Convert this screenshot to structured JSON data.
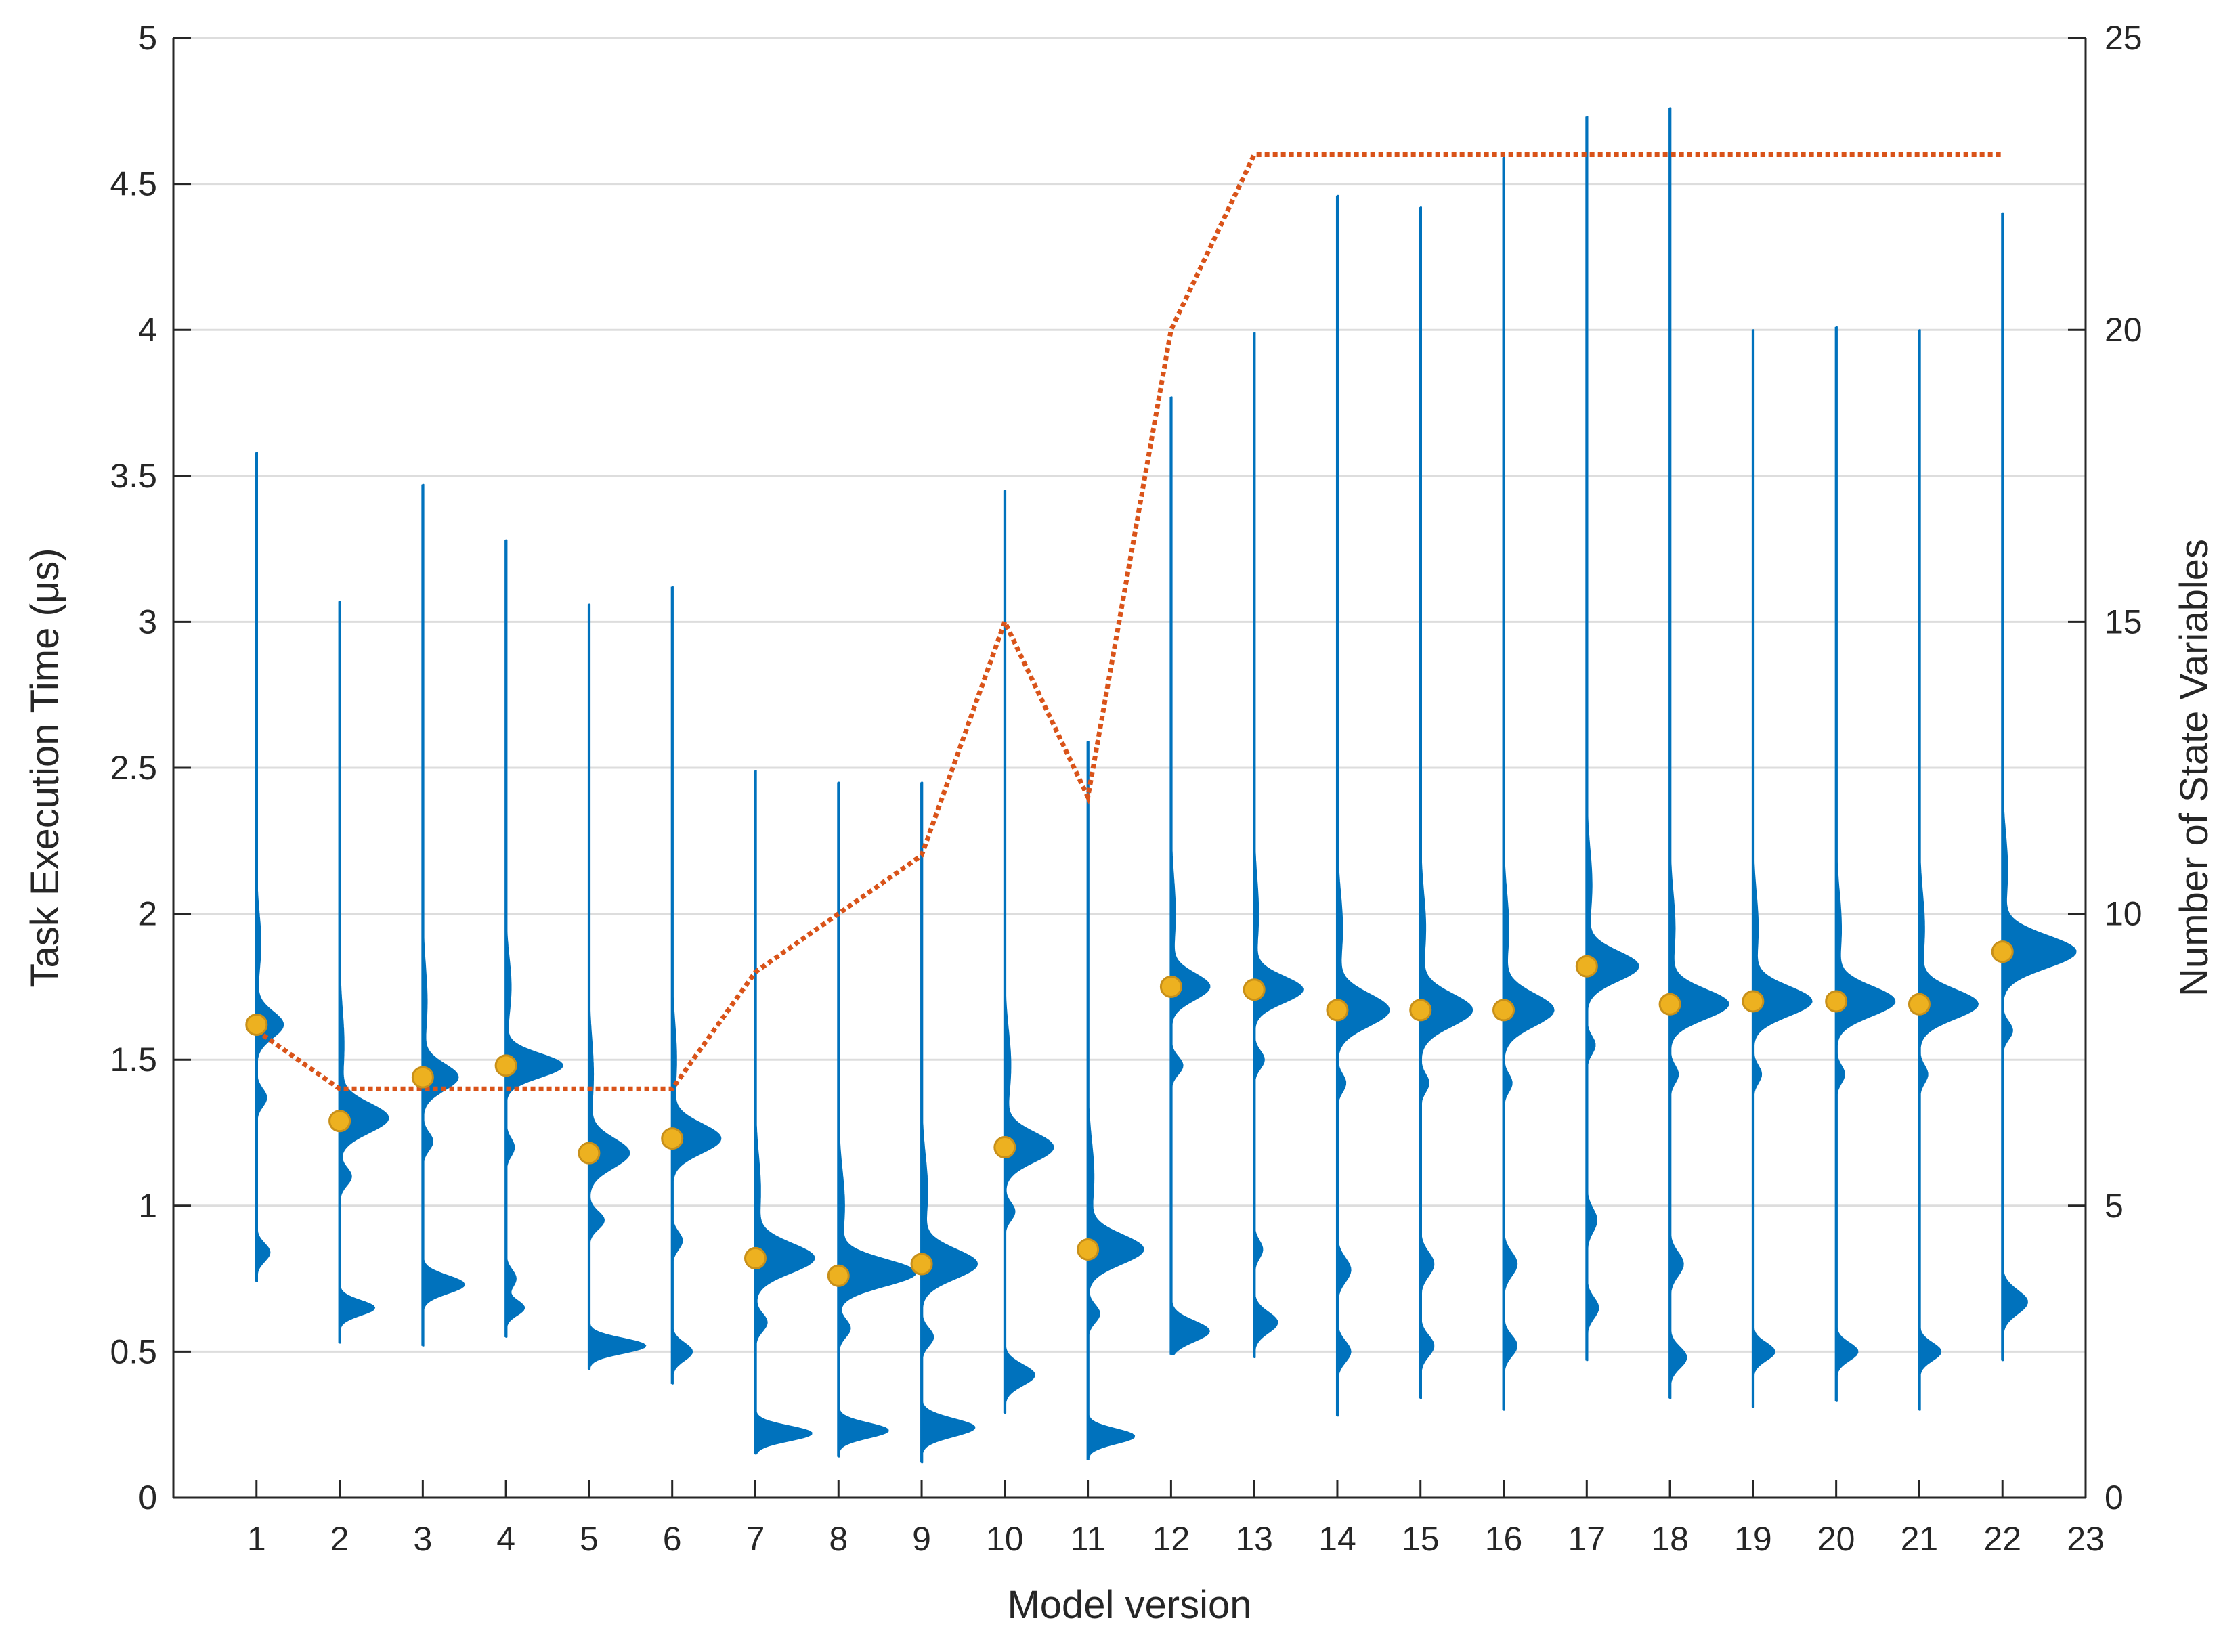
{
  "chart_data": {
    "type": "violin",
    "xlabel": "Model version",
    "ylabel_left": "Task Execution Time (μs)",
    "ylabel_right": "Number of State Variables",
    "xlim": [
      0,
      23
    ],
    "ylim_left": [
      0,
      5
    ],
    "ylim_right": [
      0,
      25
    ],
    "xticks": [
      1,
      2,
      3,
      4,
      5,
      6,
      7,
      8,
      9,
      10,
      11,
      12,
      13,
      14,
      15,
      16,
      17,
      18,
      19,
      20,
      21,
      22,
      23
    ],
    "yticks_left": [
      0,
      0.5,
      1,
      1.5,
      2,
      2.5,
      3,
      3.5,
      4,
      4.5,
      5
    ],
    "yticks_right": [
      0,
      5,
      10,
      15,
      20,
      25
    ],
    "grid": "horizontal",
    "colors": {
      "violin": "#0072BD",
      "median": "#EDB120",
      "median_edge": "#C8901A",
      "state_line": "#D95319",
      "grid": "#DDDDDD",
      "axis": "#262626"
    },
    "violins": [
      {
        "x": 1,
        "min": 0.74,
        "max": 3.58,
        "median": 1.62,
        "modes": [
          {
            "y": 1.62,
            "w": 0.32,
            "s": 0.045
          },
          {
            "y": 1.37,
            "w": 0.12,
            "s": 0.03
          },
          {
            "y": 0.84,
            "w": 0.16,
            "s": 0.03
          },
          {
            "y": 1.9,
            "w": 0.05,
            "s": 0.1
          }
        ]
      },
      {
        "x": 2,
        "min": 0.53,
        "max": 3.07,
        "median": 1.29,
        "modes": [
          {
            "y": 1.3,
            "w": 0.58,
            "s": 0.05
          },
          {
            "y": 1.1,
            "w": 0.14,
            "s": 0.03
          },
          {
            "y": 0.65,
            "w": 0.42,
            "s": 0.025
          },
          {
            "y": 1.55,
            "w": 0.05,
            "s": 0.12
          }
        ]
      },
      {
        "x": 3,
        "min": 0.52,
        "max": 3.47,
        "median": 1.44,
        "modes": [
          {
            "y": 1.44,
            "w": 0.42,
            "s": 0.045
          },
          {
            "y": 1.22,
            "w": 0.12,
            "s": 0.03
          },
          {
            "y": 0.73,
            "w": 0.5,
            "s": 0.03
          },
          {
            "y": 1.7,
            "w": 0.05,
            "s": 0.12
          }
        ]
      },
      {
        "x": 4,
        "min": 0.55,
        "max": 3.28,
        "median": 1.48,
        "modes": [
          {
            "y": 1.48,
            "w": 0.68,
            "s": 0.04
          },
          {
            "y": 1.2,
            "w": 0.1,
            "s": 0.03
          },
          {
            "y": 0.75,
            "w": 0.12,
            "s": 0.03
          },
          {
            "y": 0.65,
            "w": 0.22,
            "s": 0.025
          },
          {
            "y": 1.75,
            "w": 0.06,
            "s": 0.1
          }
        ]
      },
      {
        "x": 5,
        "min": 0.44,
        "max": 3.06,
        "median": 1.18,
        "modes": [
          {
            "y": 1.18,
            "w": 0.48,
            "s": 0.05
          },
          {
            "y": 0.95,
            "w": 0.18,
            "s": 0.03
          },
          {
            "y": 0.52,
            "w": 0.68,
            "s": 0.025
          },
          {
            "y": 1.45,
            "w": 0.05,
            "s": 0.12
          }
        ]
      },
      {
        "x": 6,
        "min": 0.39,
        "max": 3.12,
        "median": 1.23,
        "modes": [
          {
            "y": 1.23,
            "w": 0.58,
            "s": 0.05
          },
          {
            "y": 0.88,
            "w": 0.12,
            "s": 0.03
          },
          {
            "y": 0.5,
            "w": 0.24,
            "s": 0.03
          },
          {
            "y": 1.5,
            "w": 0.05,
            "s": 0.12
          }
        ]
      },
      {
        "x": 7,
        "min": 0.15,
        "max": 2.49,
        "median": 0.82,
        "modes": [
          {
            "y": 0.82,
            "w": 0.7,
            "s": 0.05
          },
          {
            "y": 0.6,
            "w": 0.14,
            "s": 0.03
          },
          {
            "y": 0.22,
            "w": 0.68,
            "s": 0.025
          },
          {
            "y": 1.05,
            "w": 0.06,
            "s": 0.12
          }
        ]
      },
      {
        "x": 8,
        "min": 0.14,
        "max": 2.45,
        "median": 0.76,
        "modes": [
          {
            "y": 0.77,
            "w": 0.92,
            "s": 0.045
          },
          {
            "y": 0.58,
            "w": 0.14,
            "s": 0.03
          },
          {
            "y": 0.23,
            "w": 0.6,
            "s": 0.025
          },
          {
            "y": 1.0,
            "w": 0.07,
            "s": 0.12
          }
        ]
      },
      {
        "x": 9,
        "min": 0.12,
        "max": 2.45,
        "median": 0.8,
        "modes": [
          {
            "y": 0.8,
            "w": 0.66,
            "s": 0.05
          },
          {
            "y": 0.55,
            "w": 0.14,
            "s": 0.03
          },
          {
            "y": 0.24,
            "w": 0.64,
            "s": 0.03
          },
          {
            "y": 1.05,
            "w": 0.07,
            "s": 0.12
          }
        ]
      },
      {
        "x": 10,
        "min": 0.29,
        "max": 3.45,
        "median": 1.2,
        "modes": [
          {
            "y": 1.2,
            "w": 0.58,
            "s": 0.05
          },
          {
            "y": 0.98,
            "w": 0.12,
            "s": 0.03
          },
          {
            "y": 0.42,
            "w": 0.36,
            "s": 0.035
          },
          {
            "y": 1.48,
            "w": 0.07,
            "s": 0.12
          }
        ]
      },
      {
        "x": 11,
        "min": 0.13,
        "max": 2.59,
        "median": 0.85,
        "modes": [
          {
            "y": 0.85,
            "w": 0.66,
            "s": 0.05
          },
          {
            "y": 0.63,
            "w": 0.14,
            "s": 0.03
          },
          {
            "y": 0.21,
            "w": 0.56,
            "s": 0.025
          },
          {
            "y": 1.1,
            "w": 0.07,
            "s": 0.12
          }
        ]
      },
      {
        "x": 12,
        "min": 0.49,
        "max": 3.77,
        "median": 1.75,
        "modes": [
          {
            "y": 1.75,
            "w": 0.46,
            "s": 0.045
          },
          {
            "y": 1.48,
            "w": 0.14,
            "s": 0.03
          },
          {
            "y": 0.57,
            "w": 0.46,
            "s": 0.035
          },
          {
            "y": 2.0,
            "w": 0.05,
            "s": 0.12
          }
        ]
      },
      {
        "x": 13,
        "min": 0.48,
        "max": 3.99,
        "median": 1.74,
        "modes": [
          {
            "y": 1.74,
            "w": 0.58,
            "s": 0.045
          },
          {
            "y": 1.5,
            "w": 0.12,
            "s": 0.03
          },
          {
            "y": 0.85,
            "w": 0.1,
            "s": 0.03
          },
          {
            "y": 0.6,
            "w": 0.28,
            "s": 0.035
          },
          {
            "y": 2.0,
            "w": 0.05,
            "s": 0.12
          }
        ]
      },
      {
        "x": 14,
        "min": 0.28,
        "max": 4.46,
        "median": 1.67,
        "modes": [
          {
            "y": 1.67,
            "w": 0.62,
            "s": 0.055
          },
          {
            "y": 1.42,
            "w": 0.1,
            "s": 0.03
          },
          {
            "y": 0.78,
            "w": 0.16,
            "s": 0.04
          },
          {
            "y": 0.5,
            "w": 0.16,
            "s": 0.035
          },
          {
            "y": 1.95,
            "w": 0.06,
            "s": 0.12
          }
        ]
      },
      {
        "x": 15,
        "min": 0.34,
        "max": 4.42,
        "median": 1.67,
        "modes": [
          {
            "y": 1.67,
            "w": 0.62,
            "s": 0.055
          },
          {
            "y": 1.42,
            "w": 0.1,
            "s": 0.03
          },
          {
            "y": 0.8,
            "w": 0.16,
            "s": 0.04
          },
          {
            "y": 0.52,
            "w": 0.16,
            "s": 0.035
          },
          {
            "y": 1.95,
            "w": 0.06,
            "s": 0.12
          }
        ]
      },
      {
        "x": 16,
        "min": 0.3,
        "max": 4.59,
        "median": 1.67,
        "modes": [
          {
            "y": 1.67,
            "w": 0.6,
            "s": 0.055
          },
          {
            "y": 1.42,
            "w": 0.1,
            "s": 0.03
          },
          {
            "y": 0.8,
            "w": 0.16,
            "s": 0.04
          },
          {
            "y": 0.52,
            "w": 0.16,
            "s": 0.035
          },
          {
            "y": 1.95,
            "w": 0.06,
            "s": 0.12
          }
        ]
      },
      {
        "x": 17,
        "min": 0.47,
        "max": 4.73,
        "median": 1.82,
        "modes": [
          {
            "y": 1.82,
            "w": 0.62,
            "s": 0.05
          },
          {
            "y": 1.55,
            "w": 0.1,
            "s": 0.03
          },
          {
            "y": 0.95,
            "w": 0.12,
            "s": 0.04
          },
          {
            "y": 0.65,
            "w": 0.14,
            "s": 0.035
          },
          {
            "y": 2.1,
            "w": 0.06,
            "s": 0.12
          }
        ]
      },
      {
        "x": 18,
        "min": 0.34,
        "max": 4.76,
        "median": 1.69,
        "modes": [
          {
            "y": 1.69,
            "w": 0.7,
            "s": 0.05
          },
          {
            "y": 1.45,
            "w": 0.1,
            "s": 0.03
          },
          {
            "y": 0.8,
            "w": 0.16,
            "s": 0.04
          },
          {
            "y": 0.48,
            "w": 0.2,
            "s": 0.035
          },
          {
            "y": 1.95,
            "w": 0.06,
            "s": 0.12
          }
        ]
      },
      {
        "x": 19,
        "min": 0.31,
        "max": 4.0,
        "median": 1.7,
        "modes": [
          {
            "y": 1.7,
            "w": 0.7,
            "s": 0.05
          },
          {
            "y": 1.45,
            "w": 0.1,
            "s": 0.03
          },
          {
            "y": 0.5,
            "w": 0.26,
            "s": 0.03
          },
          {
            "y": 1.95,
            "w": 0.06,
            "s": 0.12
          }
        ]
      },
      {
        "x": 20,
        "min": 0.33,
        "max": 4.01,
        "median": 1.7,
        "modes": [
          {
            "y": 1.7,
            "w": 0.7,
            "s": 0.05
          },
          {
            "y": 1.45,
            "w": 0.1,
            "s": 0.03
          },
          {
            "y": 0.5,
            "w": 0.26,
            "s": 0.03
          },
          {
            "y": 1.95,
            "w": 0.06,
            "s": 0.12
          }
        ]
      },
      {
        "x": 21,
        "min": 0.3,
        "max": 4.0,
        "median": 1.69,
        "modes": [
          {
            "y": 1.69,
            "w": 0.7,
            "s": 0.05
          },
          {
            "y": 1.45,
            "w": 0.1,
            "s": 0.03
          },
          {
            "y": 0.5,
            "w": 0.26,
            "s": 0.03
          },
          {
            "y": 1.95,
            "w": 0.06,
            "s": 0.12
          }
        ]
      },
      {
        "x": 22,
        "min": 0.47,
        "max": 4.4,
        "median": 1.87,
        "modes": [
          {
            "y": 1.87,
            "w": 0.88,
            "s": 0.055
          },
          {
            "y": 1.6,
            "w": 0.12,
            "s": 0.03
          },
          {
            "y": 0.67,
            "w": 0.3,
            "s": 0.04
          },
          {
            "y": 2.15,
            "w": 0.06,
            "s": 0.12
          }
        ]
      }
    ],
    "state_variables": {
      "x": [
        1,
        2,
        3,
        4,
        5,
        6,
        7,
        8,
        9,
        10,
        11,
        12,
        13,
        14,
        15,
        16,
        17,
        18,
        19,
        20,
        21,
        22
      ],
      "y": [
        8,
        7,
        7,
        7,
        7,
        7,
        9,
        10,
        11,
        15,
        12,
        20,
        23,
        23,
        23,
        23,
        23,
        23,
        23,
        23,
        23,
        23
      ],
      "style": "dotted"
    }
  }
}
